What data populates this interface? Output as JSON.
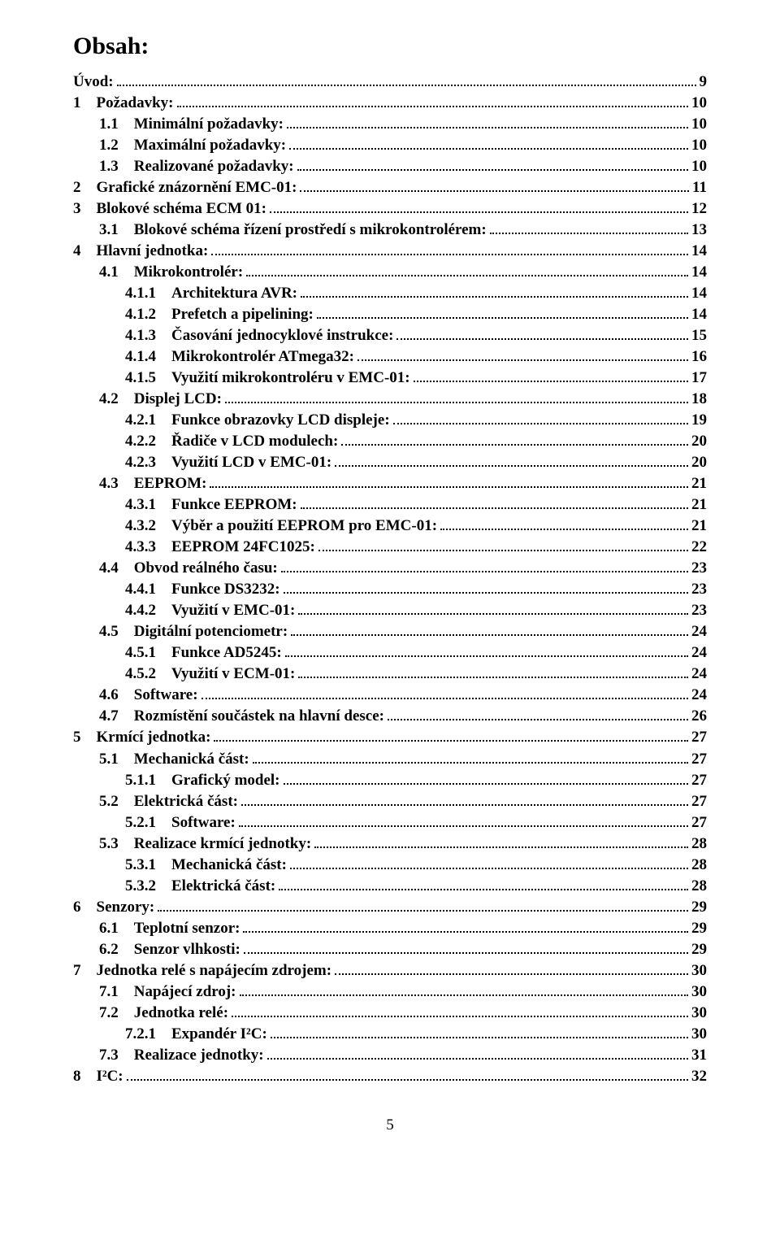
{
  "heading": "Obsah:",
  "page_number": "5",
  "toc": [
    {
      "indent": 0,
      "label": "Úvod:",
      "page": "9"
    },
    {
      "indent": 1,
      "label": "1 Požadavky:",
      "page": "10"
    },
    {
      "indent": 2,
      "label": "1.1 Minimální požadavky:",
      "page": "10"
    },
    {
      "indent": 2,
      "label": "1.2 Maximální požadavky:",
      "page": "10"
    },
    {
      "indent": 2,
      "label": "1.3 Realizované požadavky:",
      "page": "10"
    },
    {
      "indent": 1,
      "label": "2 Grafické znázornění EMC-01:",
      "page": "11"
    },
    {
      "indent": 1,
      "label": "3 Blokové schéma ECM 01:",
      "page": "12"
    },
    {
      "indent": 2,
      "label": "3.1 Blokové schéma řízení prostředí s mikrokontrolérem:",
      "page": "13"
    },
    {
      "indent": 1,
      "label": "4 Hlavní jednotka:",
      "page": "14"
    },
    {
      "indent": 2,
      "label": "4.1 Mikrokontrolér:",
      "page": "14"
    },
    {
      "indent": 3,
      "label": "4.1.1 Architektura AVR:",
      "page": "14"
    },
    {
      "indent": 3,
      "label": "4.1.2 Prefetch a pipelining:",
      "page": "14"
    },
    {
      "indent": 3,
      "label": "4.1.3 Časování jednocyklové instrukce:",
      "page": "15"
    },
    {
      "indent": 3,
      "label": "4.1.4 Mikrokontrolér ATmega32:",
      "page": "16"
    },
    {
      "indent": 3,
      "label": "4.1.5 Využití mikrokontroléru v EMC-01:",
      "page": "17"
    },
    {
      "indent": 2,
      "label": "4.2 Displej LCD:",
      "page": "18"
    },
    {
      "indent": 3,
      "label": "4.2.1 Funkce obrazovky LCD displeje:",
      "page": "19"
    },
    {
      "indent": 3,
      "label": "4.2.2 Řadiče v LCD modulech:",
      "page": "20"
    },
    {
      "indent": 3,
      "label": "4.2.3 Využití LCD v EMC-01:",
      "page": "20"
    },
    {
      "indent": 2,
      "label": "4.3 EEPROM:",
      "page": "21"
    },
    {
      "indent": 3,
      "label": "4.3.1 Funkce EEPROM:",
      "page": "21"
    },
    {
      "indent": 3,
      "label": "4.3.2 Výběr a použití EEPROM pro EMC-01:",
      "page": "21"
    },
    {
      "indent": 3,
      "label": "4.3.3 EEPROM 24FC1025:",
      "page": "22"
    },
    {
      "indent": 2,
      "label": "4.4 Obvod reálného času:",
      "page": "23"
    },
    {
      "indent": 3,
      "label": "4.4.1 Funkce DS3232:",
      "page": "23"
    },
    {
      "indent": 3,
      "label": "4.4.2 Využití v EMC-01:",
      "page": "23"
    },
    {
      "indent": 2,
      "label": "4.5 Digitální potenciometr:",
      "page": "24"
    },
    {
      "indent": 3,
      "label": "4.5.1 Funkce AD5245:",
      "page": "24"
    },
    {
      "indent": 3,
      "label": "4.5.2 Využití v ECM-01:",
      "page": "24"
    },
    {
      "indent": 2,
      "label": "4.6 Software:",
      "page": "24"
    },
    {
      "indent": 2,
      "label": "4.7 Rozmístění součástek na hlavní desce:",
      "page": "26"
    },
    {
      "indent": 1,
      "label": "5 Krmící jednotka:",
      "page": "27"
    },
    {
      "indent": 2,
      "label": "5.1 Mechanická část:",
      "page": "27"
    },
    {
      "indent": 3,
      "label": "5.1.1 Grafický model:",
      "page": "27"
    },
    {
      "indent": 2,
      "label": "5.2 Elektrická část:",
      "page": "27"
    },
    {
      "indent": 3,
      "label": "5.2.1 Software:",
      "page": "27"
    },
    {
      "indent": 2,
      "label": "5.3 Realizace krmící jednotky:",
      "page": "28"
    },
    {
      "indent": 3,
      "label": "5.3.1 Mechanická část:",
      "page": "28"
    },
    {
      "indent": 3,
      "label": "5.3.2 Elektrická část:",
      "page": "28"
    },
    {
      "indent": 1,
      "label": "6 Senzory:",
      "page": "29"
    },
    {
      "indent": 2,
      "label": "6.1 Teplotní senzor:",
      "page": "29"
    },
    {
      "indent": 2,
      "label": "6.2 Senzor vlhkosti:",
      "page": "29"
    },
    {
      "indent": 1,
      "label": "7 Jednotka relé s napájecím zdrojem:",
      "page": "30"
    },
    {
      "indent": 2,
      "label": "7.1 Napájecí zdroj:",
      "page": "30"
    },
    {
      "indent": 2,
      "label": "7.2 Jednotka relé:",
      "page": "30"
    },
    {
      "indent": 3,
      "label": "7.2.1 Expandér I²C:",
      "page": "30"
    },
    {
      "indent": 2,
      "label": "7.3 Realizace jednotky:",
      "page": "31"
    },
    {
      "indent": 1,
      "label": "8 I²C:",
      "page": "32"
    }
  ]
}
